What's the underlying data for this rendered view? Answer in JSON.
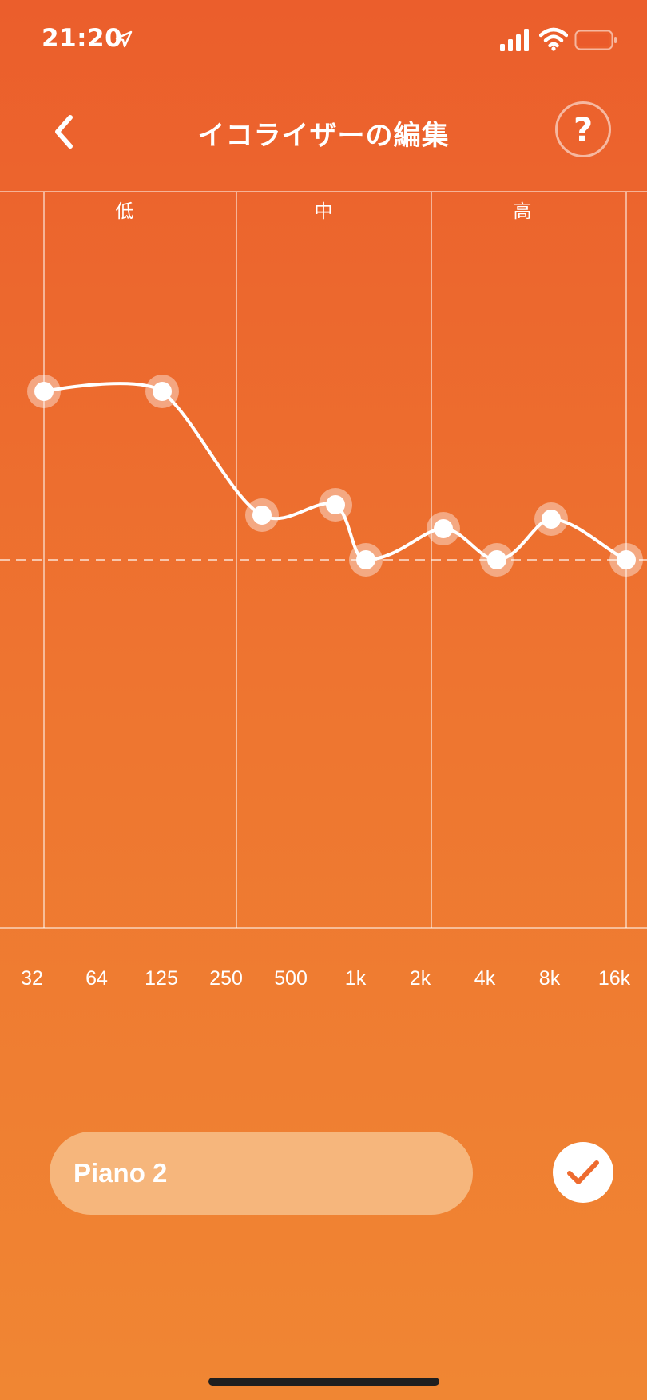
{
  "status_bar": {
    "time": "21:20",
    "icons": [
      "location-arrow-icon",
      "cellular-signal-icon",
      "wifi-icon",
      "battery-icon"
    ]
  },
  "header": {
    "title": "イコライザーの編集",
    "back_icon": "chevron-left-icon",
    "help_label": "?"
  },
  "equalizer": {
    "band_labels": [
      "低",
      "中",
      "高"
    ],
    "frequencies": [
      "32",
      "64",
      "125",
      "250",
      "500",
      "1k",
      "2k",
      "4k",
      "8k",
      "16k"
    ],
    "curve_points": [
      {
        "freq": "32",
        "level": 0.46
      },
      {
        "freq": "125",
        "level": 0.46
      },
      {
        "freq": "375",
        "level": 0.125
      },
      {
        "freq": "750",
        "level": 0.15
      },
      {
        "freq": "1k",
        "level": 0.0
      },
      {
        "freq": "2k",
        "level": 0.09
      },
      {
        "freq": "4k",
        "level": 0.0
      },
      {
        "freq": "8k",
        "level": 0.11
      },
      {
        "freq": "16k",
        "level": 0.0
      }
    ]
  },
  "preset": {
    "name": "Piano 2"
  },
  "colors": {
    "background_top": "#EB5E2C",
    "background_bottom": "#F08633",
    "accent": "#EE6B2F",
    "curve": "#FFFFFF"
  }
}
